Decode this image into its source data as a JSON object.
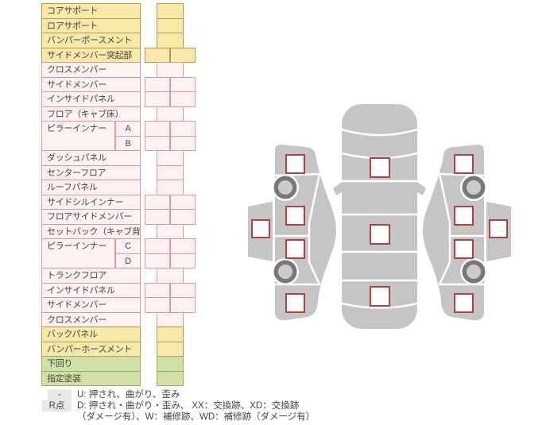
{
  "palette": {
    "yellow_bg": "#f7e9a8",
    "yellow_border": "#bc9750",
    "pink_bg": "#fdf1f1",
    "pink_border": "#db9b9b",
    "green_bg": "#cfe2a6",
    "green_border": "#b3a266",
    "text": "#444444",
    "legend_chip_bg": "#e8e8e8"
  },
  "table": {
    "rows": [
      {
        "label": "コアサポート",
        "tone": "yellow",
        "cells": "single"
      },
      {
        "label": "ロアサポート",
        "tone": "yellow",
        "cells": "single"
      },
      {
        "label": "バンパーポースメント",
        "tone": "yellow",
        "cells": "single"
      },
      {
        "label": "サイドメンバー突起部",
        "tone": "yellow",
        "cells": "double"
      },
      {
        "label": "クロスメンバー",
        "tone": "pink",
        "cells": "single"
      },
      {
        "label": "サイドメンバー",
        "tone": "pink",
        "cells": "double"
      },
      {
        "label": "インサイドパネル",
        "tone": "pink",
        "cells": "double"
      },
      {
        "label": "フロア（キャブ床）",
        "tone": "pink",
        "cells": "single"
      },
      {
        "label": "ピラーインナー",
        "tone": "pink",
        "cells": "double",
        "sub": "A",
        "label_rowspan": 2
      },
      {
        "label": "",
        "tone": "pink",
        "cells": "double",
        "sub": "B",
        "label_merged": true
      },
      {
        "label": "ダッシュパネル",
        "tone": "pink",
        "cells": "single"
      },
      {
        "label": "センターフロア",
        "tone": "pink",
        "cells": "single"
      },
      {
        "label": "ルーフパネル",
        "tone": "pink",
        "cells": "single"
      },
      {
        "label": "サイドシルインナー",
        "tone": "pink",
        "cells": "double"
      },
      {
        "label": "フロアサイドメンバー",
        "tone": "pink",
        "cells": "double"
      },
      {
        "label": "セットバック（キャブ背）",
        "tone": "pink",
        "cells": "single"
      },
      {
        "label": "ピラーインナー",
        "tone": "pink",
        "cells": "double",
        "sub": "C",
        "label_rowspan": 2
      },
      {
        "label": "",
        "tone": "pink",
        "cells": "double",
        "sub": "D",
        "label_merged": true
      },
      {
        "label": "トランクフロア",
        "tone": "pink",
        "cells": "single"
      },
      {
        "label": "インサイドパネル",
        "tone": "pink",
        "cells": "double"
      },
      {
        "label": "サイドメンバー",
        "tone": "pink",
        "cells": "double"
      },
      {
        "label": "クロスメンバー",
        "tone": "pink",
        "cells": "single"
      },
      {
        "label": "バックパネル",
        "tone": "yellow",
        "cells": "single"
      },
      {
        "label": "バンパーホースメント",
        "tone": "yellow",
        "cells": "single"
      },
      {
        "label": "下回り",
        "tone": "green",
        "cells": "single"
      },
      {
        "label": "指定塗装",
        "tone": "green",
        "cells": "single"
      }
    ]
  },
  "legend": {
    "items": [
      {
        "symbol": "-",
        "lines": [
          "U: 押され、曲がり、歪み"
        ]
      },
      {
        "symbol": "R点",
        "lines": [
          "D: 押され・曲がり・歪み、 XX：交換跡、XD：交換跡",
          "（ダメージ有）、W：補修跡、WD：補修跡（ダメージ有）"
        ]
      }
    ]
  },
  "diagram": {
    "views": [
      "left-side-view",
      "top-view",
      "right-side-view"
    ],
    "marker_style": "empty-square",
    "square_marker_count": 13,
    "wheel_count": 4,
    "colors": {
      "body": "#c5c5c5",
      "marker_border": "#b5413f",
      "wheel_ring": "#787878",
      "wheel_hub": "#cbcbcb",
      "separator": "#ffffff"
    }
  }
}
